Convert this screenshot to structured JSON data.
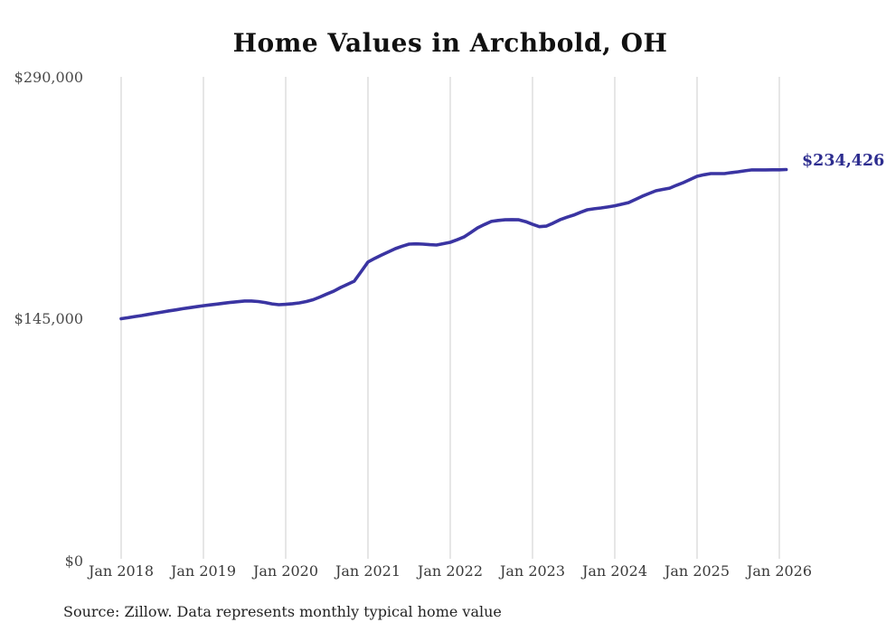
{
  "title": "Home Values in Archbold, OH",
  "colors": {
    "line": "#3a34a2",
    "end_label": "#2d2d8f",
    "gridline": "#cccccc",
    "title_text": "#111111",
    "tick_text": "#3a3a3a",
    "background": "#ffffff"
  },
  "chart_data": {
    "type": "line",
    "title": "Home Values in Archbold, OH",
    "xlabel": "",
    "ylabel": "",
    "ylim": [
      0,
      290000
    ],
    "grid": "vertical-only",
    "legend": "none",
    "y_ticks": [
      {
        "value": 0,
        "label": "$0"
      },
      {
        "value": 145000,
        "label": "$145,000"
      },
      {
        "value": 290000,
        "label": "$290,000"
      }
    ],
    "x_tick_labels": [
      "Jan 2018",
      "Jan 2019",
      "Jan 2020",
      "Jan 2021",
      "Jan 2022",
      "Jan 2023",
      "Jan 2024",
      "Jan 2025",
      "Jan 2026"
    ],
    "series": [
      {
        "name": "Typical home value",
        "color": "#3a34a2",
        "start_month": "2018-01",
        "end_month": "2026-02",
        "frequency": "monthly",
        "values": [
          145000,
          145600,
          146300,
          146900,
          147600,
          148300,
          149000,
          149700,
          150300,
          151000,
          151600,
          152200,
          152800,
          153300,
          153800,
          154300,
          154800,
          155200,
          155600,
          155600,
          155300,
          154700,
          153900,
          153400,
          153600,
          154000,
          154500,
          155300,
          156400,
          158000,
          159800,
          161500,
          163700,
          165600,
          167500,
          173200,
          179000,
          181200,
          183200,
          185100,
          187000,
          188500,
          189700,
          189900,
          189700,
          189400,
          189200,
          190000,
          190800,
          192300,
          194000,
          196700,
          199500,
          201500,
          203300,
          203900,
          204300,
          204400,
          204300,
          203200,
          201600,
          200200,
          200500,
          202300,
          204300,
          205800,
          207100,
          208800,
          210300,
          210900,
          211400,
          212000,
          212700,
          213600,
          214600,
          216500,
          218400,
          220100,
          221700,
          222500,
          223300,
          225000,
          226600,
          228500,
          230400,
          231300,
          232000,
          232000,
          232000,
          232600,
          233100,
          233700,
          234200,
          234200,
          234200,
          234300,
          234300,
          234426
        ]
      }
    ],
    "end_label": "$234,426",
    "end_value": 234426,
    "source_note": "Source: Zillow. Data represents monthly typical home value"
  }
}
